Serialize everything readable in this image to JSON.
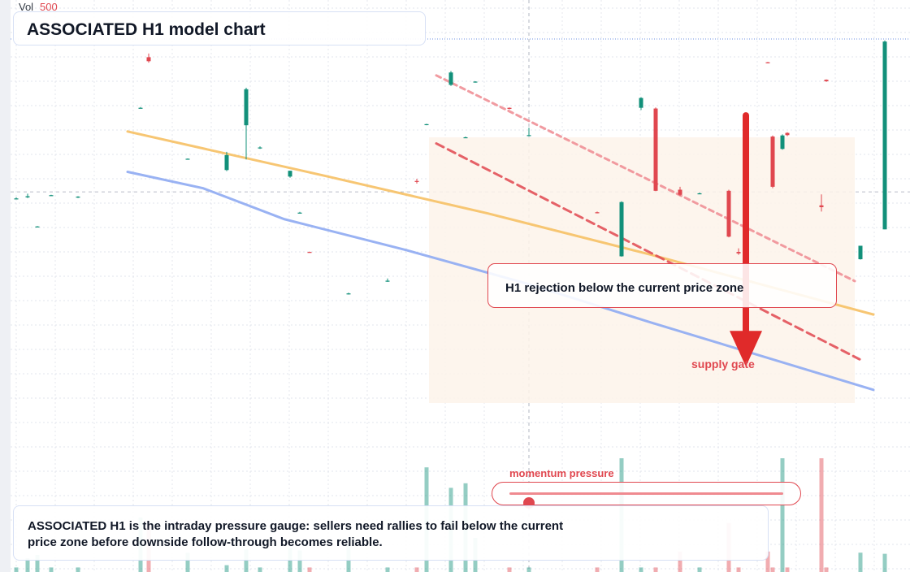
{
  "volume_header": {
    "label": "Vol",
    "value": "500"
  },
  "title": "ASSOCIATED H1 model chart",
  "callout": {
    "text": "H1 rejection below the current price zone"
  },
  "zone_label": "supply gate",
  "momentum": {
    "label": "momentum pressure",
    "level": 0.07
  },
  "note": "ASSOCIATED H1 is the intraday pressure gauge: sellers need rallies to fail below the current price zone before downside follow-through becomes reliable.",
  "colors": {
    "up": "#12907a",
    "down": "#e0474f",
    "ema_fast": "#f7c36b",
    "ema_slow": "#94aef2",
    "arrow": "#e02a2a",
    "grid": "#d9dde6",
    "zone": "#fdf3ea"
  },
  "chart_data": {
    "type": "candlestick",
    "title": "ASSOCIATED H1 model chart",
    "xlabel": "",
    "ylabel": "",
    "ylim": [
      0,
      100
    ],
    "volume_ylim": [
      0,
      1000
    ],
    "price_line": 58,
    "candles": [
      {
        "x": 20,
        "o": 56,
        "h": 56.5,
        "l": 56,
        "c": 56.2,
        "v": 40
      },
      {
        "x": 34,
        "o": 56.5,
        "h": 57.5,
        "l": 56.3,
        "c": 56.8,
        "v": 120
      },
      {
        "x": 46,
        "o": 48.5,
        "h": 48.6,
        "l": 48.4,
        "c": 48.5,
        "v": 150
      },
      {
        "x": 63,
        "o": 57,
        "h": 57.2,
        "l": 57,
        "c": 57.1,
        "v": 40
      },
      {
        "x": 96,
        "o": 56.5,
        "h": 56.8,
        "l": 56.3,
        "c": 56.7,
        "v": 40
      },
      {
        "x": 173,
        "o": 81,
        "h": 81.3,
        "l": 80.9,
        "c": 81.1,
        "v": 480
      },
      {
        "x": 183,
        "o": 95,
        "h": 96,
        "l": 93.5,
        "c": 93.9,
        "v": 410
      },
      {
        "x": 231,
        "o": 67,
        "h": 67.2,
        "l": 66.9,
        "c": 67.1,
        "v": 170
      },
      {
        "x": 279,
        "o": 64,
        "h": 69,
        "l": 63.7,
        "c": 68.1,
        "v": 60
      },
      {
        "x": 303,
        "o": 76.3,
        "h": 86.6,
        "l": 66.9,
        "c": 86.2,
        "v": 200
      },
      {
        "x": 320,
        "o": 70,
        "h": 70.5,
        "l": 69.8,
        "c": 70.2,
        "v": 40
      },
      {
        "x": 357,
        "o": 62.2,
        "h": 63.8,
        "l": 61.9,
        "c": 63.8,
        "v": 210
      },
      {
        "x": 369,
        "o": 52.2,
        "h": 52.5,
        "l": 52.2,
        "c": 52.3,
        "v": 190
      },
      {
        "x": 381,
        "o": 41.5,
        "h": 41.6,
        "l": 41.3,
        "c": 41.4,
        "v": 40
      },
      {
        "x": 429,
        "o": 30,
        "h": 30.3,
        "l": 29.8,
        "c": 30.1,
        "v": 240
      },
      {
        "x": 477,
        "o": 33.5,
        "h": 34.2,
        "l": 33.3,
        "c": 33.6,
        "v": 40
      },
      {
        "x": 513,
        "o": 61,
        "h": 61.6,
        "l": 60.3,
        "c": 60.8,
        "v": 40
      },
      {
        "x": 525,
        "o": 76.5,
        "h": 76.7,
        "l": 76.3,
        "c": 76.6,
        "v": 920
      },
      {
        "x": 555,
        "o": 87.4,
        "h": 91.2,
        "l": 87.1,
        "c": 90.8,
        "v": 740
      },
      {
        "x": 573,
        "o": 73,
        "h": 73.2,
        "l": 72.8,
        "c": 73,
        "v": 780
      },
      {
        "x": 585,
        "o": 88.2,
        "h": 88.4,
        "l": 88,
        "c": 88.3,
        "v": 300
      },
      {
        "x": 627,
        "o": 81.1,
        "h": 81.2,
        "l": 80.7,
        "c": 80.8,
        "v": 40
      },
      {
        "x": 651,
        "o": 73.6,
        "h": 75.6,
        "l": 73.3,
        "c": 73.6,
        "v": 40
      },
      {
        "x": 735,
        "o": 52.4,
        "h": 52.6,
        "l": 52.1,
        "c": 52.2,
        "v": 40
      },
      {
        "x": 765,
        "o": 40.3,
        "h": 55.4,
        "l": 40.2,
        "c": 55.2,
        "v": 1000
      },
      {
        "x": 789,
        "o": 81.1,
        "h": 84,
        "l": 80.5,
        "c": 83.8,
        "v": 40
      },
      {
        "x": 807,
        "o": 80.9,
        "h": 81.2,
        "l": 58.2,
        "c": 58.3,
        "v": 40
      },
      {
        "x": 837,
        "o": 58.6,
        "h": 59.4,
        "l": 56.9,
        "c": 57.2,
        "v": 180
      },
      {
        "x": 861,
        "o": 57.6,
        "h": 57.8,
        "l": 57.4,
        "c": 57.6,
        "v": 40
      },
      {
        "x": 897,
        "o": 58.3,
        "h": 58.6,
        "l": 45.5,
        "c": 45.7,
        "v": 430
      },
      {
        "x": 909,
        "o": 41.5,
        "h": 42.5,
        "l": 40.7,
        "c": 41.1,
        "v": 40
      },
      {
        "x": 945,
        "o": 93.6,
        "h": 93.7,
        "l": 93.3,
        "c": 93.5,
        "v": 180
      },
      {
        "x": 951,
        "o": 73.2,
        "h": 73.5,
        "l": 59,
        "c": 59.4,
        "v": 40
      },
      {
        "x": 963,
        "o": 69.8,
        "h": 73.8,
        "l": 69.6,
        "c": 73.5,
        "v": 1800
      },
      {
        "x": 969,
        "o": 74.2,
        "h": 74.4,
        "l": 73.3,
        "c": 73.6,
        "v": 40
      },
      {
        "x": 1011,
        "o": 54.3,
        "h": 57.3,
        "l": 52.6,
        "c": 53.8,
        "v": 1000
      },
      {
        "x": 1017,
        "o": 88.8,
        "h": 88.9,
        "l": 88.2,
        "c": 88.4,
        "v": 40
      },
      {
        "x": 1059,
        "o": 39.5,
        "h": 43.2,
        "l": 39.4,
        "c": 43.2,
        "v": 170
      },
      {
        "x": 1089,
        "o": 47.7,
        "h": 99.6,
        "l": 47.7,
        "c": 99.3,
        "v": 160
      }
    ],
    "series": [
      {
        "type": "line",
        "color": "#f7c36b",
        "points": [
          [
            157,
            74.6
          ],
          [
            400,
            62.4
          ],
          [
            600,
            52.1
          ],
          [
            800,
            40.8
          ],
          [
            1075,
            24.3
          ]
        ]
      },
      {
        "type": "line",
        "color": "#94aef2",
        "points": [
          [
            157,
            63.5
          ],
          [
            250,
            59
          ],
          [
            350,
            50.5
          ],
          [
            500,
            42
          ],
          [
            650,
            32.7
          ],
          [
            800,
            22.2
          ],
          [
            1075,
            3.6
          ]
        ]
      },
      {
        "type": "line",
        "dash": true,
        "color": "#ef8a90",
        "points": [
          [
            537,
            90
          ],
          [
            1052,
            33.5
          ]
        ]
      },
      {
        "type": "line",
        "dash": true,
        "color": "#e0474f",
        "points": [
          [
            537,
            71.3
          ],
          [
            1058,
            12
          ]
        ]
      }
    ],
    "arrow": {
      "x": 918,
      "from": 79,
      "to": 10
    },
    "zone": {
      "x": [
        528,
        1052
      ],
      "y": [
        0,
        73
      ]
    }
  }
}
